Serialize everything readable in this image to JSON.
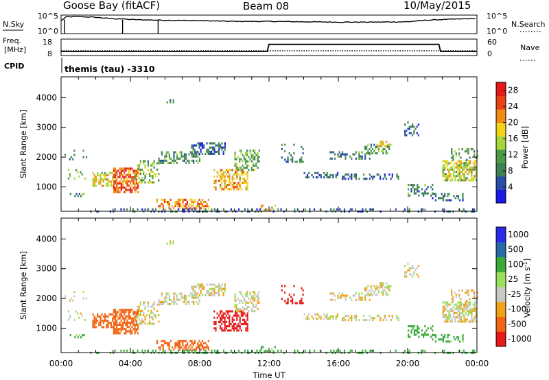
{
  "header": {
    "station": "Goose Bay (fitACF)",
    "beam": "Beam 08",
    "date": "10/May/2015"
  },
  "strip1": {
    "left_label": "N.Sky",
    "right_label": "N.Search",
    "left_ticks": [
      "10^5",
      "10^0"
    ],
    "right_ticks": [
      "10^5",
      "10^0"
    ]
  },
  "strip2": {
    "left_label_1": "Freq.",
    "left_label_2": "[MHz]",
    "right_label": "Nave",
    "left_ticks": [
      "18",
      "8"
    ],
    "right_ticks": [
      "60",
      "0"
    ]
  },
  "cpid": {
    "label": "CPID",
    "text": "themis (tau) -3310"
  },
  "colors": {
    "power": [
      "#1a1ae6",
      "#2a4ea8",
      "#3f7f52",
      "#4c9a4a",
      "#a7d63a",
      "#f2d21a",
      "#f08a18",
      "#e84315",
      "#e41a1a"
    ],
    "velocity": [
      "#e61a1a",
      "#f26515",
      "#f0a31a",
      "#c8c8c4",
      "#9be05a",
      "#3aa93a",
      "#2a6aa8",
      "#2a2ae8"
    ]
  },
  "chart_data": [
    {
      "type": "line",
      "panel": "N.Sky / N.Search",
      "x_range_hours": [
        0,
        24
      ],
      "y_axis": "log",
      "y_ticks": [
        "10^0",
        "10^5"
      ],
      "series": [
        {
          "name": "N.Sky",
          "points": [
            [
              0.0,
              3.5
            ],
            [
              0.3,
              4.5
            ],
            [
              1.0,
              4.6
            ],
            [
              2.0,
              4.4
            ],
            [
              3.0,
              4.0
            ],
            [
              3.5,
              4.0
            ],
            [
              4.0,
              3.8
            ],
            [
              6.0,
              3.6
            ],
            [
              8.0,
              3.5
            ],
            [
              10.0,
              3.3
            ],
            [
              12.0,
              3.3
            ],
            [
              14.0,
              3.2
            ],
            [
              16.0,
              3.1
            ],
            [
              18.0,
              3.1
            ],
            [
              20.0,
              3.2
            ],
            [
              21.0,
              3.6
            ],
            [
              22.0,
              3.8
            ],
            [
              24.0,
              4.1
            ]
          ]
        }
      ]
    },
    {
      "type": "line",
      "panel": "Freq. [MHz] / Nave",
      "x_range_hours": [
        0,
        24
      ],
      "y_range": [
        8,
        18
      ],
      "y_ticks": [
        "8",
        "18"
      ],
      "series": [
        {
          "points": [
            [
              0.0,
              10.5
            ],
            [
              11.9,
              10.5
            ],
            [
              12.0,
              14.8
            ],
            [
              21.8,
              14.8
            ],
            [
              21.9,
              10.5
            ],
            [
              24.0,
              10.5
            ]
          ]
        }
      ]
    },
    {
      "type": "heatmap",
      "panel": "Power",
      "x_range_hours": [
        0,
        24
      ],
      "x_ticks": [
        "00:00",
        "04:00",
        "08:00",
        "12:00",
        "16:00",
        "20:00",
        "00:00"
      ],
      "xlabel": "Time UT",
      "ylabel": "Slant Range [km]",
      "y_range": [
        180,
        4700
      ],
      "y_ticks": [
        "1000",
        "2000",
        "3000",
        "4000"
      ],
      "colorbar": {
        "label": "Power [dB]",
        "ticks": [
          "4",
          "8",
          "12",
          "16",
          "20",
          "24",
          "28"
        ],
        "range": [
          0,
          30
        ]
      },
      "regions": [
        {
          "t": [
            0.2,
            1.5
          ],
          "r": [
            1950,
            2250
          ],
          "v": 8,
          "d": 0.15
        },
        {
          "t": [
            0.3,
            1.5
          ],
          "r": [
            1300,
            1600
          ],
          "v": 12,
          "d": 0.15
        },
        {
          "t": [
            0.5,
            1.4
          ],
          "r": [
            700,
            800
          ],
          "v": 10,
          "d": 0.45
        },
        {
          "t": [
            1.8,
            3.0
          ],
          "r": [
            1000,
            1500
          ],
          "v": 18,
          "d": 0.55
        },
        {
          "t": [
            3.0,
            4.4
          ],
          "r": [
            850,
            1650
          ],
          "v": 24,
          "d": 0.6
        },
        {
          "t": [
            4.2,
            5.6
          ],
          "r": [
            1150,
            1900
          ],
          "v": 14,
          "d": 0.4
        },
        {
          "t": [
            5.6,
            8.0
          ],
          "r": [
            1800,
            2200
          ],
          "v": 10,
          "d": 0.45
        },
        {
          "t": [
            7.5,
            9.5
          ],
          "r": [
            2100,
            2500
          ],
          "v": 7,
          "d": 0.45
        },
        {
          "t": [
            5.5,
            8.5
          ],
          "r": [
            300,
            600
          ],
          "v": 22,
          "d": 0.5
        },
        {
          "t": [
            8.8,
            10.8
          ],
          "r": [
            950,
            1600
          ],
          "v": 20,
          "d": 0.5
        },
        {
          "t": [
            10.0,
            11.4
          ],
          "r": [
            1600,
            2250
          ],
          "v": 12,
          "d": 0.5
        },
        {
          "t": [
            11.0,
            12.5
          ],
          "r": [
            250,
            400
          ],
          "v": 16,
          "d": 0.4
        },
        {
          "t": [
            6.0,
            6.6
          ],
          "r": [
            3750,
            3950
          ],
          "v": 8,
          "d": 0.3
        },
        {
          "t": [
            12.7,
            14.0
          ],
          "r": [
            1850,
            2450
          ],
          "v": 8,
          "d": 0.2
        },
        {
          "t": [
            14.0,
            16.0
          ],
          "r": [
            1350,
            1500
          ],
          "v": 7,
          "d": 0.45
        },
        {
          "t": [
            16.2,
            19.5
          ],
          "r": [
            1300,
            1450
          ],
          "v": 7,
          "d": 0.4
        },
        {
          "t": [
            15.5,
            17.8
          ],
          "r": [
            1950,
            2200
          ],
          "v": 9,
          "d": 0.45
        },
        {
          "t": [
            17.5,
            19.0
          ],
          "r": [
            2150,
            2450
          ],
          "v": 11,
          "d": 0.45
        },
        {
          "t": [
            18.3,
            18.8
          ],
          "r": [
            2400,
            2550
          ],
          "v": 20,
          "d": 0.7
        },
        {
          "t": [
            19.8,
            20.6
          ],
          "r": [
            2700,
            3200
          ],
          "v": 7,
          "d": 0.35
        },
        {
          "t": [
            20.0,
            21.4
          ],
          "r": [
            700,
            1100
          ],
          "v": 9,
          "d": 0.35
        },
        {
          "t": [
            21.4,
            23.2
          ],
          "r": [
            550,
            800
          ],
          "v": 7,
          "d": 0.4
        },
        {
          "t": [
            22.0,
            24.0
          ],
          "r": [
            1200,
            1900
          ],
          "v": 16,
          "d": 0.6
        },
        {
          "t": [
            22.5,
            24.0
          ],
          "r": [
            1900,
            2300
          ],
          "v": 10,
          "d": 0.3
        },
        {
          "t": [
            1.5,
            24.0
          ],
          "r": [
            200,
            280
          ],
          "v": 6,
          "d": 0.25
        }
      ]
    },
    {
      "type": "heatmap",
      "panel": "Velocity",
      "x_range_hours": [
        0,
        24
      ],
      "x_ticks": [
        "00:00",
        "04:00",
        "08:00",
        "12:00",
        "16:00",
        "20:00",
        "00:00"
      ],
      "xlabel": "Time UT",
      "ylabel": "Slant Range [km]",
      "y_range": [
        180,
        4700
      ],
      "y_ticks": [
        "1000",
        "2000",
        "3000",
        "4000"
      ],
      "colorbar": {
        "label": "Velocity [m s^-1]",
        "ticks": [
          "1000",
          "500",
          "100",
          "25",
          "-25",
          "-100",
          "-500",
          "-1000"
        ],
        "range": [
          -1000,
          1000
        ]
      },
      "regions": [
        {
          "t": [
            0.2,
            1.5
          ],
          "r": [
            1950,
            2250
          ],
          "v": 0,
          "d": 0.15
        },
        {
          "t": [
            0.3,
            1.5
          ],
          "r": [
            1300,
            1600
          ],
          "v": 0,
          "d": 0.15
        },
        {
          "t": [
            0.5,
            1.4
          ],
          "r": [
            700,
            800
          ],
          "v": 150,
          "d": 0.45
        },
        {
          "t": [
            1.8,
            3.0
          ],
          "r": [
            1000,
            1500
          ],
          "v": -300,
          "d": 0.55
        },
        {
          "t": [
            3.0,
            4.4
          ],
          "r": [
            850,
            1650
          ],
          "v": -350,
          "d": 0.6
        },
        {
          "t": [
            4.2,
            5.6
          ],
          "r": [
            1150,
            1900
          ],
          "v": 0,
          "d": 0.4
        },
        {
          "t": [
            5.6,
            8.0
          ],
          "r": [
            1800,
            2200
          ],
          "v": 0,
          "d": 0.45
        },
        {
          "t": [
            7.5,
            9.5
          ],
          "r": [
            2100,
            2500
          ],
          "v": 0,
          "d": 0.45
        },
        {
          "t": [
            5.5,
            8.5
          ],
          "r": [
            300,
            600
          ],
          "v": -200,
          "d": 0.5
        },
        {
          "t": [
            8.8,
            10.8
          ],
          "r": [
            950,
            1600
          ],
          "v": -600,
          "d": 0.5
        },
        {
          "t": [
            10.0,
            11.4
          ],
          "r": [
            1600,
            2250
          ],
          "v": 0,
          "d": 0.5
        },
        {
          "t": [
            11.0,
            12.5
          ],
          "r": [
            250,
            400
          ],
          "v": 150,
          "d": 0.4
        },
        {
          "t": [
            6.0,
            6.6
          ],
          "r": [
            3750,
            3950
          ],
          "v": 0,
          "d": 0.3
        },
        {
          "t": [
            12.7,
            14.0
          ],
          "r": [
            1850,
            2450
          ],
          "v": -700,
          "d": 0.2
        },
        {
          "t": [
            14.0,
            16.0
          ],
          "r": [
            1350,
            1500
          ],
          "v": 0,
          "d": 0.45
        },
        {
          "t": [
            16.2,
            19.5
          ],
          "r": [
            1300,
            1450
          ],
          "v": 0,
          "d": 0.4
        },
        {
          "t": [
            15.5,
            17.8
          ],
          "r": [
            1950,
            2200
          ],
          "v": 0,
          "d": 0.45
        },
        {
          "t": [
            17.5,
            19.0
          ],
          "r": [
            2150,
            2450
          ],
          "v": 0,
          "d": 0.45
        },
        {
          "t": [
            18.3,
            18.8
          ],
          "r": [
            2400,
            2550
          ],
          "v": 0,
          "d": 0.7
        },
        {
          "t": [
            19.8,
            20.6
          ],
          "r": [
            2700,
            3200
          ],
          "v": 0,
          "d": 0.35
        },
        {
          "t": [
            20.0,
            21.4
          ],
          "r": [
            700,
            1100
          ],
          "v": 200,
          "d": 0.35
        },
        {
          "t": [
            21.4,
            23.2
          ],
          "r": [
            550,
            800
          ],
          "v": 150,
          "d": 0.4
        },
        {
          "t": [
            22.0,
            24.0
          ],
          "r": [
            1200,
            1900
          ],
          "v": 0,
          "d": 0.6
        },
        {
          "t": [
            22.5,
            24.0
          ],
          "r": [
            1900,
            2300
          ],
          "v": -60,
          "d": 0.3
        },
        {
          "t": [
            1.5,
            24.0
          ],
          "r": [
            200,
            280
          ],
          "v": 300,
          "d": 0.25
        }
      ]
    }
  ]
}
